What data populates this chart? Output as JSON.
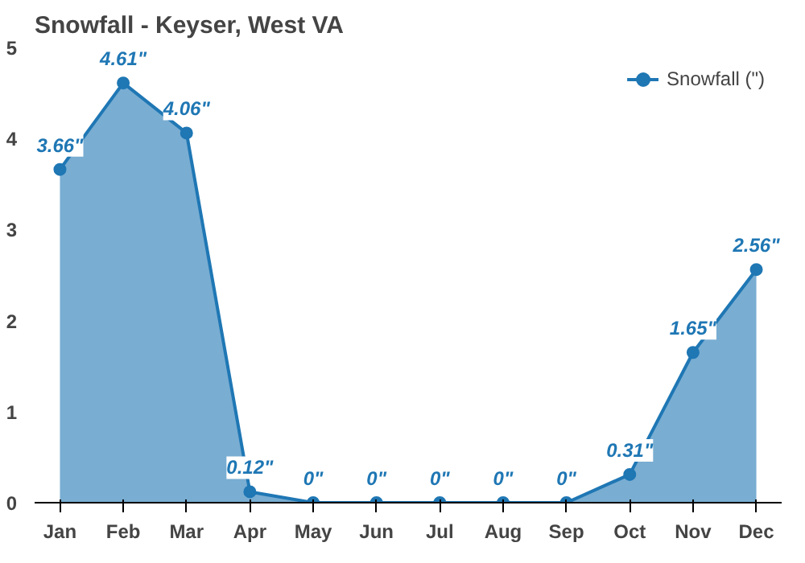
{
  "chart_data": {
    "type": "area",
    "title": "Snowfall - Keyser, West VA",
    "categories": [
      "Jan",
      "Feb",
      "Mar",
      "Apr",
      "May",
      "Jun",
      "Jul",
      "Aug",
      "Sep",
      "Oct",
      "Nov",
      "Dec"
    ],
    "series": [
      {
        "name": "Snowfall (\")",
        "color": "#1f77b4",
        "values": [
          3.66,
          4.61,
          4.06,
          0.12,
          0,
          0,
          0,
          0,
          0,
          0.31,
          1.65,
          2.56
        ],
        "value_labels": [
          "3.66\"",
          "4.61\"",
          "4.06\"",
          "0.12\"",
          "0\"",
          "0\"",
          "0\"",
          "0\"",
          "0\"",
          "0.31\"",
          "1.65\"",
          "2.56\""
        ]
      }
    ],
    "ylim": [
      0,
      5
    ],
    "yticks": [
      0,
      1,
      2,
      3,
      4,
      5
    ],
    "grid": false,
    "legend": "top right",
    "marker": "circle"
  }
}
